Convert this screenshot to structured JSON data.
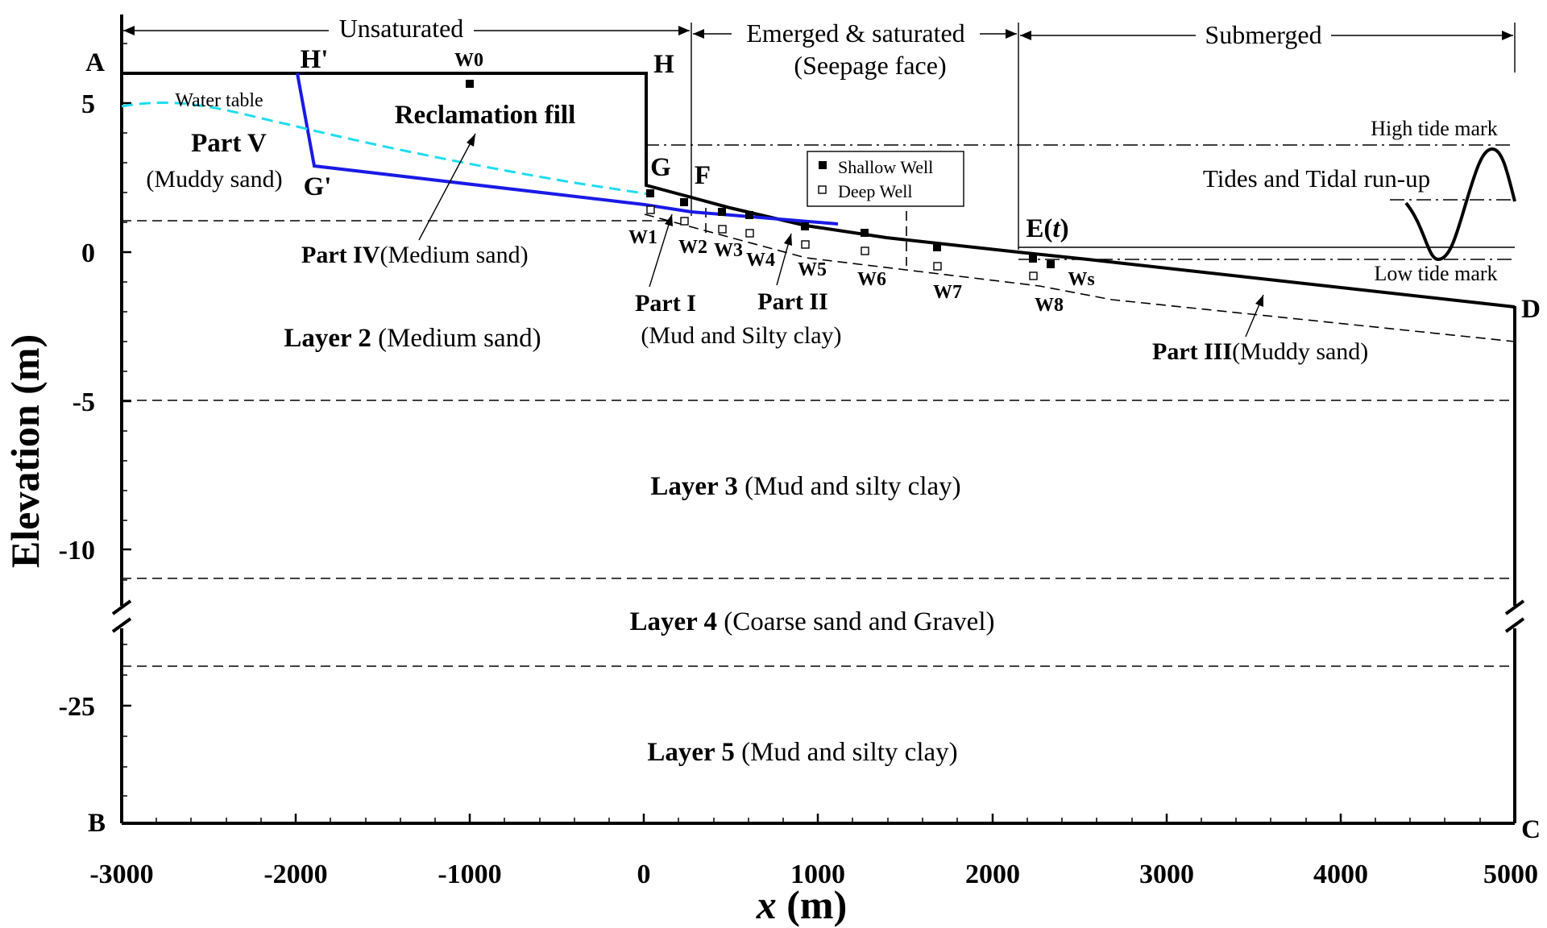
{
  "figure": {
    "y_axis_label": "Elevation (m)",
    "x_axis_label_var": "x",
    "x_axis_label_unit": " (m)",
    "x_ticks": [
      "-3000",
      "-2000",
      "-1000",
      "0",
      "1000",
      "2000",
      "3000",
      "4000",
      "5000"
    ],
    "y_ticks": [
      "5",
      "0",
      "-5",
      "-10",
      "-25"
    ],
    "regions": {
      "unsaturated": "Unsaturated",
      "emerged_line1": "Emerged & saturated",
      "emerged_line2": "(Seepage face)",
      "submerged": "Submerged"
    },
    "points": {
      "A": "A",
      "B": "B",
      "C": "C",
      "D": "D",
      "H": "H",
      "H_prime": "H'",
      "G": "G",
      "G_prime": "G'",
      "F": "F",
      "E": "E(",
      "E_t": "t",
      "E_close": ")"
    },
    "labels": {
      "water_table": "Water table",
      "reclamation_fill": "Reclamation fill",
      "part_v": "Part V",
      "part_v_mat": "(Muddy sand)",
      "part_iv": "Part IV",
      "part_iv_mat": "(Medium sand)",
      "part_i": "Part I",
      "part_ii": "Part II",
      "parts_i_ii_mat": "(Mud and Silty clay)",
      "part_iii": "Part III",
      "part_iii_mat": "(Muddy sand)",
      "high_tide": "High tide mark",
      "low_tide": "Low tide mark",
      "tides": "Tides and Tidal run-up"
    },
    "layers": [
      {
        "name": "Layer 2",
        "material": " (Medium sand)"
      },
      {
        "name": "Layer 3",
        "material": " (Mud and silty clay)"
      },
      {
        "name": "Layer 4",
        "material": " (Coarse sand and Gravel)"
      },
      {
        "name": "Layer 5",
        "material": " (Mud and silty clay)"
      }
    ],
    "legend": {
      "shallow": "Shallow Well",
      "deep": "Deep Well"
    },
    "wells": [
      "W0",
      "W1",
      "W2",
      "W3",
      "W4",
      "W5",
      "W6",
      "W7",
      "W8",
      "Ws"
    ]
  }
}
